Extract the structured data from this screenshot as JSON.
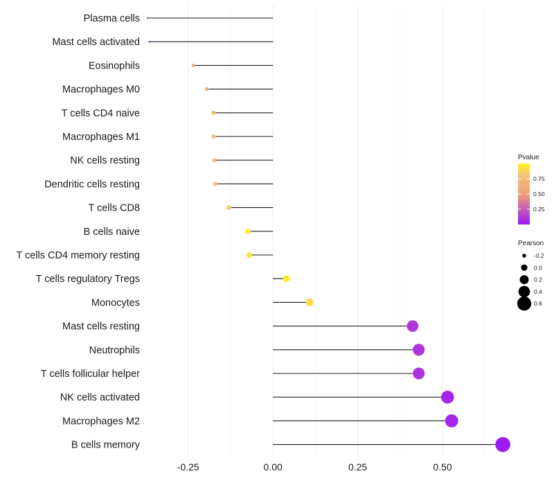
{
  "chart_data": {
    "type": "lollipop",
    "title": "",
    "xlabel": "",
    "ylabel": "",
    "xlim": [
      -0.37,
      0.69
    ],
    "xticks": [
      -0.25,
      0.0,
      0.25,
      0.5
    ],
    "xtick_labels": [
      "-0.25",
      "0.00",
      "0.25",
      "0.50"
    ],
    "categories": [
      "Plasma cells",
      "Mast cells activated",
      "Eosinophils",
      "Macrophages M0",
      "T cells CD4 naive",
      "Macrophages M1",
      "NK cells resting",
      "Dendritic cells resting",
      "T cells CD8",
      "B cells naive",
      "T cells CD4 memory resting",
      "T cells regulatory  Tregs",
      "Monocytes",
      "Mast cells resting",
      "Neutrophils",
      "T cells follicular helper",
      "NK cells activated",
      "Macrophages M2",
      "B cells memory"
    ],
    "values": [
      -0.37,
      -0.365,
      -0.235,
      -0.195,
      -0.175,
      -0.175,
      -0.173,
      -0.17,
      -0.13,
      -0.073,
      -0.07,
      0.04,
      0.108,
      0.412,
      0.43,
      0.43,
      0.515,
      0.527,
      0.678
    ],
    "pvalues": [
      0.03,
      0.04,
      0.55,
      0.62,
      0.68,
      0.68,
      0.69,
      0.7,
      0.77,
      0.93,
      0.93,
      0.97,
      0.88,
      0.12,
      0.1,
      0.1,
      0.05,
      0.05,
      0.01
    ],
    "legend_pvalue": {
      "title": "Pvalue",
      "ticks": [
        "0.25",
        "0.50",
        "0.75"
      ],
      "colors": [
        "#9b19f5",
        "#f4c27c",
        "#fff21c"
      ]
    },
    "legend_pearson": {
      "title": "Pearson",
      "ticks": [
        "-0.2",
        "0.0",
        "0.2",
        "0.4",
        "0.6"
      ]
    }
  }
}
